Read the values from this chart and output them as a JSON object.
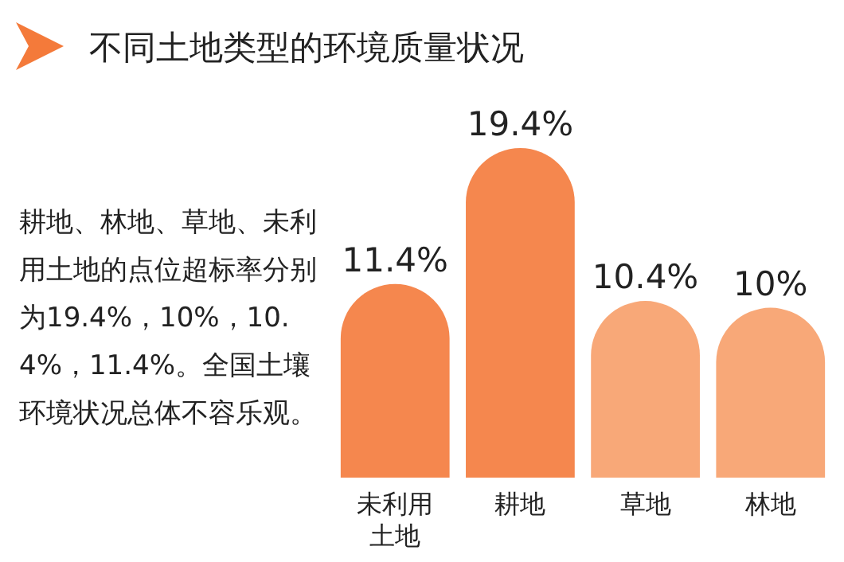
{
  "chart_data": {
    "type": "bar",
    "title": "不同土地类型的环境质量状况",
    "categories": [
      "未利用土地",
      "耕地",
      "草地",
      "林地"
    ],
    "values": [
      11.4,
      19.4,
      10.4,
      10
    ],
    "value_labels": [
      "11.4%",
      "19.4%",
      "10.4%",
      "10%"
    ],
    "colors": [
      "#f5874e",
      "#f5874e",
      "#f8a878",
      "#f8a878"
    ],
    "relative": false,
    "annotations": [
      "耕地、林地、草地、未利用土地的点位超标率分别为19.4%，10%，10.4%，11.4%。全国土壤环境状况总体不容乐观。"
    ]
  }
}
